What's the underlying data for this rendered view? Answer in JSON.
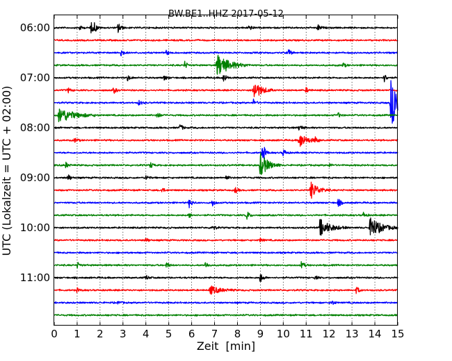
{
  "chart_data": {
    "type": "line",
    "title": "BW.BE1..HHZ 2017-05-12",
    "xlabel": "Zeit  [min]",
    "ylabel": "UTC (Lokalzeit = UTC + 02:00)",
    "xlim": [
      0,
      15
    ],
    "x_ticks": [
      "0",
      "1",
      "2",
      "3",
      "4",
      "5",
      "6",
      "7",
      "8",
      "9",
      "10",
      "11",
      "12",
      "13",
      "14",
      "15"
    ],
    "y_tick_labels": [
      "06:00",
      "07:00",
      "08:00",
      "09:00",
      "10:00",
      "11:00"
    ],
    "grid": "vertical dotted",
    "line_colors": [
      "#000000",
      "#ff0000",
      "#0000ff",
      "#008000"
    ],
    "traces": [
      {
        "start": "06:00",
        "color": "#000000",
        "events": [
          {
            "t": 1.1,
            "a": 0.2
          },
          {
            "t": 1.6,
            "a": 0.45
          },
          {
            "t": 1.75,
            "a": 0.35
          },
          {
            "t": 2.8,
            "a": 0.5
          },
          {
            "t": 8.5,
            "a": 0.25
          },
          {
            "t": 11.5,
            "a": 0.3
          }
        ]
      },
      {
        "start": "06:15",
        "color": "#ff0000",
        "events": []
      },
      {
        "start": "06:30",
        "color": "#0000ff",
        "events": [
          {
            "t": 2.9,
            "a": 0.35
          },
          {
            "t": 4.9,
            "a": 0.2
          },
          {
            "t": 10.2,
            "a": 0.35
          }
        ]
      },
      {
        "start": "06:45",
        "color": "#008000",
        "events": [
          {
            "t": 5.7,
            "a": 0.3
          },
          {
            "t": 7.1,
            "a": 0.9,
            "w": 0.5
          },
          {
            "t": 12.6,
            "a": 0.2
          }
        ]
      },
      {
        "start": "07:00",
        "color": "#000000",
        "events": [
          {
            "t": 3.2,
            "a": 0.25
          },
          {
            "t": 4.8,
            "a": 0.2
          },
          {
            "t": 7.4,
            "a": 0.4
          },
          {
            "t": 14.4,
            "a": 0.35
          }
        ]
      },
      {
        "start": "07:15",
        "color": "#ff0000",
        "events": [
          {
            "t": 0.6,
            "a": 0.2
          },
          {
            "t": 2.6,
            "a": 0.25
          },
          {
            "t": 8.7,
            "a": 0.8,
            "w": 0.3
          },
          {
            "t": 11.0,
            "a": 0.2
          }
        ]
      },
      {
        "start": "07:30",
        "color": "#0000ff",
        "events": [
          {
            "t": 3.7,
            "a": 0.2
          },
          {
            "t": 8.7,
            "a": 0.25
          },
          {
            "t": 14.7,
            "a": 1.8,
            "w": 0.5
          }
        ]
      },
      {
        "start": "07:45",
        "color": "#008000",
        "events": [
          {
            "t": 0.2,
            "a": 0.6,
            "w": 0.6
          },
          {
            "t": 4.5,
            "a": 0.3
          },
          {
            "t": 12.4,
            "a": 0.2
          }
        ]
      },
      {
        "start": "08:00",
        "color": "#000000",
        "events": [
          {
            "t": 5.5,
            "a": 0.3
          },
          {
            "t": 10.7,
            "a": 0.3
          }
        ]
      },
      {
        "start": "08:15",
        "color": "#ff0000",
        "events": [
          {
            "t": 0.9,
            "a": 0.2
          },
          {
            "t": 10.7,
            "a": 0.6,
            "w": 0.3
          },
          {
            "t": 11.4,
            "a": 0.2
          }
        ]
      },
      {
        "start": "08:30",
        "color": "#0000ff",
        "events": [
          {
            "t": 9.1,
            "a": 0.8
          },
          {
            "t": 10.0,
            "a": 0.3
          }
        ]
      },
      {
        "start": "08:45",
        "color": "#008000",
        "events": [
          {
            "t": 0.5,
            "a": 0.25
          },
          {
            "t": 4.2,
            "a": 0.25
          },
          {
            "t": 9.0,
            "a": 1.0,
            "w": 0.3
          },
          {
            "t": 12.0,
            "a": 0.15
          }
        ]
      },
      {
        "start": "09:00",
        "color": "#000000",
        "events": [
          {
            "t": 0.6,
            "a": 0.3
          },
          {
            "t": 4.0,
            "a": 0.25
          },
          {
            "t": 7.5,
            "a": 0.2
          }
        ]
      },
      {
        "start": "09:15",
        "color": "#ff0000",
        "events": [
          {
            "t": 4.7,
            "a": 0.2
          },
          {
            "t": 7.9,
            "a": 0.25
          },
          {
            "t": 11.2,
            "a": 0.7,
            "w": 0.3
          }
        ]
      },
      {
        "start": "09:30",
        "color": "#0000ff",
        "events": [
          {
            "t": 5.9,
            "a": 0.4
          },
          {
            "t": 6.9,
            "a": 0.3
          },
          {
            "t": 12.4,
            "a": 0.35
          }
        ]
      },
      {
        "start": "09:45",
        "color": "#008000",
        "events": [
          {
            "t": 5.9,
            "a": 0.2
          },
          {
            "t": 8.4,
            "a": 0.4
          },
          {
            "t": 13.5,
            "a": 0.2
          }
        ]
      },
      {
        "start": "10:00",
        "color": "#000000",
        "events": [
          {
            "t": 6.9,
            "a": 0.3
          },
          {
            "t": 11.6,
            "a": 0.7,
            "w": 0.4
          },
          {
            "t": 13.8,
            "a": 0.9,
            "w": 0.4
          }
        ]
      },
      {
        "start": "10:15",
        "color": "#ff0000",
        "events": [
          {
            "t": 4.0,
            "a": 0.2
          },
          {
            "t": 9.0,
            "a": 0.15
          }
        ]
      },
      {
        "start": "10:30",
        "color": "#0000ff",
        "events": []
      },
      {
        "start": "10:45",
        "color": "#008000",
        "events": [
          {
            "t": 1.0,
            "a": 0.25
          },
          {
            "t": 4.9,
            "a": 0.25
          },
          {
            "t": 6.6,
            "a": 0.3
          },
          {
            "t": 10.8,
            "a": 0.35
          }
        ]
      },
      {
        "start": "11:00",
        "color": "#000000",
        "events": [
          {
            "t": 4.0,
            "a": 0.2
          },
          {
            "t": 9.0,
            "a": 0.4
          },
          {
            "t": 11.4,
            "a": 0.15
          }
        ]
      },
      {
        "start": "11:15",
        "color": "#ff0000",
        "events": [
          {
            "t": 1.0,
            "a": 0.15
          },
          {
            "t": 6.8,
            "a": 0.35,
            "w": 0.4
          },
          {
            "t": 13.2,
            "a": 0.3
          }
        ]
      },
      {
        "start": "11:30",
        "color": "#0000ff",
        "events": [
          {
            "t": 2.8,
            "a": 0.15
          },
          {
            "t": 12.1,
            "a": 0.25
          }
        ]
      },
      {
        "start": "11:45",
        "color": "#008000",
        "events": []
      }
    ]
  }
}
